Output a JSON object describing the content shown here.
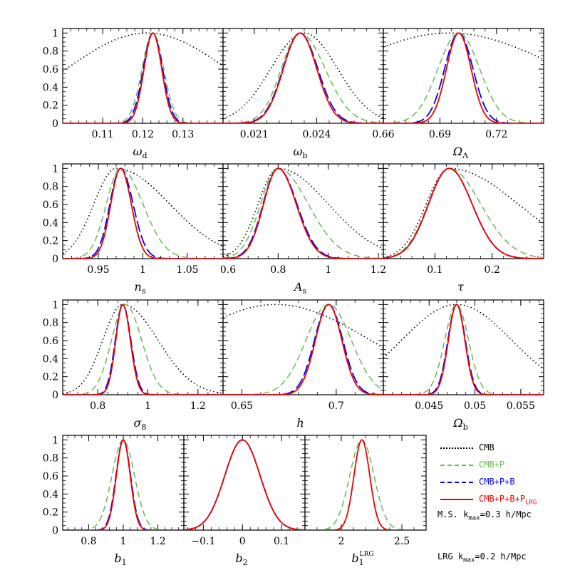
{
  "chart_data": [
    {
      "type": "line",
      "xlabel": "ω",
      "xlabel_sub": "d",
      "xlim": [
        0.1,
        0.14
      ],
      "ylim": [
        0,
        1.05
      ],
      "xticks": [
        0.11,
        0.12,
        0.13
      ],
      "xticklabels": [
        "0.11",
        "0.12",
        "0.13"
      ],
      "yticks": [
        0,
        0.2,
        0.4,
        0.6,
        0.8,
        1
      ],
      "yticklabels": [
        "0",
        "0.2",
        "0.4",
        "0.6",
        "0.8",
        "1"
      ],
      "peaks": {
        "CMB": {
          "mu": 0.121,
          "s1": 0.02,
          "s2": 0.02
        },
        "CMB+P": {
          "mu": 0.1225,
          "s1": 0.0027,
          "s2": 0.0027
        },
        "CMB+P+B": {
          "mu": 0.1225,
          "s1": 0.0024,
          "s2": 0.0024
        },
        "CMB+P+B+P_LRG": {
          "mu": 0.1225,
          "s1": 0.0022,
          "s2": 0.0022
        }
      }
    },
    {
      "type": "line",
      "xlabel": "ω",
      "xlabel_sub": "b",
      "xlim": [
        0.0195,
        0.0272
      ],
      "ylim": [
        0,
        1.05
      ],
      "xticks": [
        0.021,
        0.024
      ],
      "xticklabels": [
        "0.021",
        "0.024"
      ],
      "yticks": [
        0,
        0.2,
        0.4,
        0.6,
        0.8,
        1
      ],
      "yticklabels": [],
      "peaks": {
        "CMB": {
          "mu": 0.0234,
          "s1": 0.0016,
          "s2": 0.0016
        },
        "CMB+P": {
          "mu": 0.0232,
          "s1": 0.0009,
          "s2": 0.0012
        },
        "CMB+P+B": {
          "mu": 0.0232,
          "s1": 0.00082,
          "s2": 0.00085
        },
        "CMB+P+B+P_LRG": {
          "mu": 0.0232,
          "s1": 0.0008,
          "s2": 0.0008
        }
      }
    },
    {
      "type": "line",
      "xlabel": "Ω",
      "xlabel_sub": "Λ",
      "xlim": [
        0.66,
        0.745
      ],
      "ylim": [
        0,
        1.05
      ],
      "xticks": [
        0.66,
        0.69,
        0.72
      ],
      "xticklabels": [
        "0.66",
        "0.69",
        "0.72"
      ],
      "yticks": [
        0,
        0.2,
        0.4,
        0.6,
        0.8,
        1
      ],
      "yticklabels": [],
      "peaks": {
        "CMB": {
          "mu": 0.695,
          "s1": 0.06,
          "s2": 0.06
        },
        "CMB+P": {
          "mu": 0.7,
          "s1": 0.011,
          "s2": 0.011
        },
        "CMB+P+B": {
          "mu": 0.7,
          "s1": 0.0075,
          "s2": 0.0075
        },
        "CMB+P+B+P_LRG": {
          "mu": 0.7,
          "s1": 0.0065,
          "s2": 0.0065
        }
      }
    },
    {
      "type": "line",
      "xlabel": "n",
      "xlabel_sub": "s",
      "xlim": [
        0.91,
        1.09
      ],
      "ylim": [
        0,
        1.05
      ],
      "xticks": [
        0.95,
        1,
        1.05
      ],
      "xticklabels": [
        "0.95",
        "1",
        "1.05"
      ],
      "yticks": [
        0,
        0.2,
        0.4,
        0.6,
        0.8,
        1
      ],
      "yticklabels": [
        "0",
        "0.2",
        "0.4",
        "0.6",
        "0.8",
        "1"
      ],
      "peaks": {
        "CMB": {
          "mu": 0.97,
          "s1": 0.025,
          "s2": 0.06
        },
        "CMB+P": {
          "mu": 0.975,
          "s1": 0.016,
          "s2": 0.025
        },
        "CMB+P+B": {
          "mu": 0.975,
          "s1": 0.012,
          "s2": 0.014
        },
        "CMB+P+B+P_LRG": {
          "mu": 0.975,
          "s1": 0.011,
          "s2": 0.012
        }
      }
    },
    {
      "type": "line",
      "xlabel": "A",
      "xlabel_sub": "s",
      "xlim": [
        0.58,
        1.22
      ],
      "ylim": [
        0,
        1.05
      ],
      "xticks": [
        0.6,
        0.8,
        1,
        1.2
      ],
      "xticklabels": [
        "0.6",
        "0.8",
        "1",
        "1.2"
      ],
      "yticks": [
        0,
        0.2,
        0.4,
        0.6,
        0.8,
        1
      ],
      "yticklabels": [],
      "peaks": {
        "CMB": {
          "mu": 0.8,
          "s1": 0.08,
          "s2": 0.2
        },
        "CMB+P": {
          "mu": 0.8,
          "s1": 0.07,
          "s2": 0.12
        },
        "CMB+P+B": {
          "mu": 0.8,
          "s1": 0.06,
          "s2": 0.075
        },
        "CMB+P+B+P_LRG": {
          "mu": 0.8,
          "s1": 0.058,
          "s2": 0.072
        }
      }
    },
    {
      "type": "line",
      "xlabel": "τ",
      "xlabel_sub": "",
      "xlim": [
        0.01,
        0.29
      ],
      "ylim": [
        0,
        1.05
      ],
      "xticks": [
        0.1,
        0.2
      ],
      "xticklabels": [
        "0.1",
        "0.2"
      ],
      "yticks": [
        0,
        0.2,
        0.4,
        0.6,
        0.8,
        1
      ],
      "yticklabels": [],
      "peaks": {
        "CMB": {
          "mu": 0.125,
          "s1": 0.04,
          "s2": 0.12
        },
        "CMB+P": {
          "mu": 0.125,
          "s1": 0.037,
          "s2": 0.055
        },
        "CMB+P+B": {
          "mu": 0.125,
          "s1": 0.036,
          "s2": 0.04
        },
        "CMB+P+B+P_LRG": {
          "mu": 0.125,
          "s1": 0.036,
          "s2": 0.04
        }
      }
    },
    {
      "type": "line",
      "xlabel": "σ",
      "xlabel_sub": "8",
      "xlim": [
        0.66,
        1.3
      ],
      "ylim": [
        0,
        1.05
      ],
      "xticks": [
        0.8,
        1,
        1.2
      ],
      "xticklabels": [
        "0.8",
        "1",
        "1.2"
      ],
      "yticks": [
        0,
        0.2,
        0.4,
        0.6,
        0.8,
        1
      ],
      "yticklabels": [
        "0",
        "0.2",
        "0.4",
        "0.6",
        "0.8",
        "1"
      ],
      "peaks": {
        "CMB": {
          "mu": 0.9,
          "s1": 0.08,
          "s2": 0.14
        },
        "CMB+P": {
          "mu": 0.91,
          "s1": 0.055,
          "s2": 0.065
        },
        "CMB+P+B": {
          "mu": 0.9,
          "s1": 0.03,
          "s2": 0.032
        },
        "CMB+P+B+P_LRG": {
          "mu": 0.9,
          "s1": 0.028,
          "s2": 0.03
        }
      }
    },
    {
      "type": "line",
      "xlabel": "h",
      "xlabel_sub": "",
      "xlim": [
        0.64,
        0.725
      ],
      "ylim": [
        0,
        1.05
      ],
      "xticks": [
        0.65,
        0.7
      ],
      "xticklabels": [
        "0.65",
        "0.7"
      ],
      "yticks": [
        0,
        0.2,
        0.4,
        0.6,
        0.8,
        1
      ],
      "yticklabels": [],
      "peaks": {
        "CMB": {
          "mu": 0.668,
          "s1": 0.05,
          "s2": 0.05
        },
        "CMB+P": {
          "mu": 0.696,
          "s1": 0.012,
          "s2": 0.012
        },
        "CMB+P+B": {
          "mu": 0.696,
          "s1": 0.0075,
          "s2": 0.0075
        },
        "CMB+P+B+P_LRG": {
          "mu": 0.696,
          "s1": 0.007,
          "s2": 0.007
        }
      }
    },
    {
      "type": "line",
      "xlabel": "Ω",
      "xlabel_sub": "b",
      "xlim": [
        0.04,
        0.0575
      ],
      "ylim": [
        0,
        1.05
      ],
      "xticks": [
        0.045,
        0.05,
        0.055
      ],
      "xticklabels": [
        "0.045",
        "0.05",
        "0.055"
      ],
      "yticks": [
        0,
        0.2,
        0.4,
        0.6,
        0.8,
        1
      ],
      "yticklabels": [],
      "peaks": {
        "CMB": {
          "mu": 0.048,
          "s1": 0.006,
          "s2": 0.006
        },
        "CMB+P": {
          "mu": 0.048,
          "s1": 0.0013,
          "s2": 0.0013
        },
        "CMB+P+B": {
          "mu": 0.048,
          "s1": 0.00095,
          "s2": 0.00095
        },
        "CMB+P+B+P_LRG": {
          "mu": 0.048,
          "s1": 0.0009,
          "s2": 0.0009
        }
      }
    },
    {
      "type": "line",
      "xlabel": "b",
      "xlabel_sub": "1",
      "xlim": [
        0.65,
        1.35
      ],
      "ylim": [
        0,
        1.05
      ],
      "xticks": [
        0.8,
        1,
        1.2
      ],
      "xticklabels": [
        "0.8",
        "1",
        "1.2"
      ],
      "yticks": [
        0,
        0.2,
        0.4,
        0.6,
        0.8,
        1
      ],
      "yticklabels": [
        "0",
        "0.2",
        "0.4",
        "0.6",
        "0.8",
        "1"
      ],
      "peaks": {
        "CMB+P": {
          "mu": 1,
          "s1": 0.065,
          "s2": 0.065
        },
        "CMB+P+B": {
          "mu": 1,
          "s1": 0.042,
          "s2": 0.042
        },
        "CMB+P+B+P_LRG": {
          "mu": 1,
          "s1": 0.04,
          "s2": 0.04
        }
      }
    },
    {
      "type": "line",
      "xlabel": "b",
      "xlabel_sub": "2",
      "xlim": [
        -0.15,
        0.16
      ],
      "ylim": [
        0,
        1.05
      ],
      "xticks": [
        -0.1,
        0,
        0.1
      ],
      "xticklabels": [
        "−0.1",
        "0",
        "0.1"
      ],
      "yticks": [
        0,
        0.2,
        0.4,
        0.6,
        0.8,
        1
      ],
      "yticklabels": [],
      "peaks": {
        "CMB+P": {
          "mu": 0,
          "s1": 0.045,
          "s2": 0.045
        },
        "CMB+P+B": {
          "mu": 0,
          "s1": 0.045,
          "s2": 0.045
        },
        "CMB+P+B+P_LRG": {
          "mu": 0,
          "s1": 0.045,
          "s2": 0.045
        }
      }
    },
    {
      "type": "line",
      "xlabel": "b",
      "xlabel_sub": "1",
      "xlabel_sup": "LRG",
      "xlim": [
        1.7,
        2.7
      ],
      "ylim": [
        0,
        1.05
      ],
      "xticks": [
        2,
        2.5
      ],
      "xticklabels": [
        "2",
        "2.5"
      ],
      "yticks": [
        0,
        0.2,
        0.4,
        0.6,
        0.8,
        1
      ],
      "yticklabels": [],
      "peaks": {
        "CMB+P": {
          "mu": 2.17,
          "s1": 0.1,
          "s2": 0.1
        },
        "CMB+P+B+P_LRG": {
          "mu": 2.17,
          "s1": 0.065,
          "s2": 0.065
        }
      }
    }
  ],
  "legend": [
    {
      "key": "CMB",
      "label": "CMB",
      "label_sub": "",
      "color": "#000000",
      "dash": "dotted"
    },
    {
      "key": "CMB+P",
      "label": "CMB+P",
      "label_sub": "",
      "color": "#66bb55",
      "dash": "dashed"
    },
    {
      "key": "CMB+P+B",
      "label": "CMB+P+B",
      "label_sub": "",
      "color": "#0000ee",
      "dash": "longdash"
    },
    {
      "key": "CMB+P+B+P_LRG",
      "label": "CMB+P+B+P",
      "label_sub": "LRG",
      "color": "#ee0000",
      "dash": "solid"
    }
  ],
  "notes": {
    "ms": {
      "prefix": "M.S. k",
      "sub": "max",
      "suffix": "=0.3 h/Mpc"
    },
    "lrg": {
      "prefix": "LRG k",
      "sub": "max",
      "suffix": "=0.2 h/Mpc"
    }
  }
}
